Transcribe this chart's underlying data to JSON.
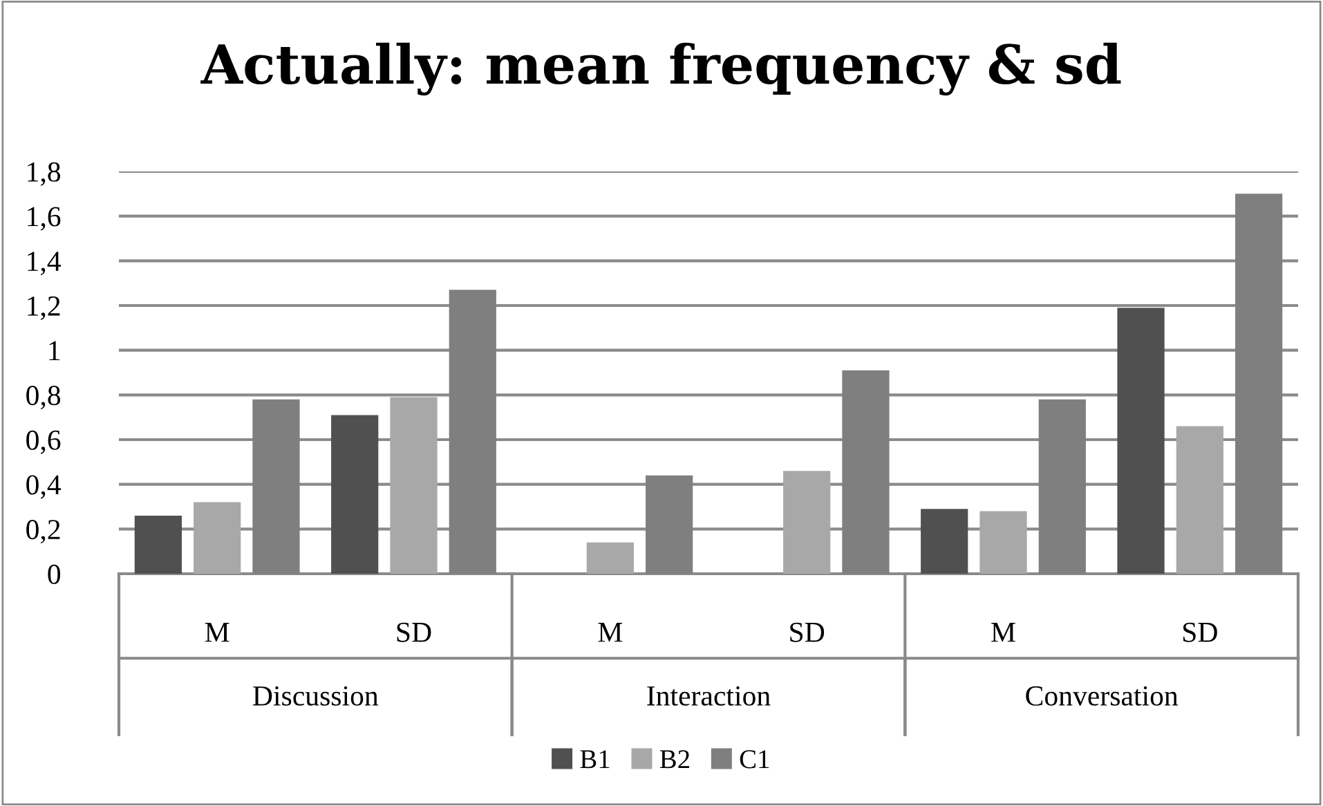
{
  "chart_data": {
    "type": "bar",
    "title": "Actually: mean frequency & sd",
    "categories": [
      "M",
      "SD",
      "M",
      "SD",
      "M",
      "SD"
    ],
    "annotations": [
      "Discussion",
      "Interaction",
      "Conversation"
    ],
    "series": [
      {
        "name": "B1",
        "color": "#505050",
        "values": [
          0.26,
          0.71,
          0,
          0,
          0.29,
          1.19
        ]
      },
      {
        "name": "B2",
        "color": "#a8a8a8",
        "values": [
          0.32,
          0.79,
          0.14,
          0.46,
          0.28,
          0.66
        ]
      },
      {
        "name": "C1",
        "color": "#7f7f7f",
        "values": [
          0.78,
          1.27,
          0.44,
          0.91,
          0.78,
          1.7
        ]
      }
    ],
    "ylim": [
      0,
      1.8
    ],
    "yticks": [
      0,
      {
        "value": 0.2,
        "label": "0,2"
      },
      {
        "value": 0.4,
        "label": "0,4"
      },
      {
        "value": 0.6,
        "label": "0,6"
      },
      {
        "value": 0.8,
        "label": "0,8"
      },
      1,
      {
        "value": 1.2,
        "label": "1,2"
      },
      {
        "value": 1.4,
        "label": "1,4"
      },
      {
        "value": 1.6,
        "label": "1,6"
      },
      {
        "value": 1.8,
        "label": "1,8"
      }
    ],
    "grid": "y",
    "legend": "bottom"
  }
}
